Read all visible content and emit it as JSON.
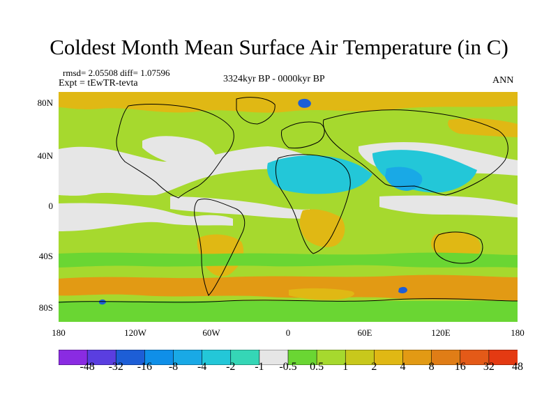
{
  "title": "Coldest Month Mean Surface Air Temperature (in C)",
  "stats": "rmsd= 2.05508 diff= 1.07596",
  "expt": "Expt = tEwTR-tevta",
  "period": "3324kyr BP - 0000kyr BP",
  "season": "ANN",
  "lat_ticks": [
    "80N",
    "40N",
    "0",
    "40S",
    "80S"
  ],
  "lon_ticks": [
    "180",
    "120W",
    "60W",
    "0",
    "60E",
    "120E",
    "180"
  ],
  "colorbar": {
    "colors": [
      "#8a2be2",
      "#5a3ee0",
      "#1d5ed6",
      "#0f8fe8",
      "#19a9e6",
      "#23c7d8",
      "#35d6b6",
      "#e6e6e6",
      "#6ad633",
      "#a6d92e",
      "#c8c81c",
      "#e0b814",
      "#e29a14",
      "#e07d16",
      "#e45a18",
      "#e43a12"
    ],
    "labels": [
      "-48",
      "-32",
      "-16",
      "-8",
      "-4",
      "-2",
      "-1",
      "-0.5",
      "0.5",
      "1",
      "2",
      "4",
      "8",
      "16",
      "32",
      "48"
    ]
  },
  "map_colors": {
    "ocean_base": "#a6d92e",
    "mid_green": "#6ad633",
    "orange": "#e0b814",
    "red_orange": "#e29a14",
    "grey": "#e6e6e6",
    "cyan": "#23c7d8",
    "blue": "#19a9e6",
    "dark_blue": "#1d5ed6",
    "coast": "#000000"
  }
}
